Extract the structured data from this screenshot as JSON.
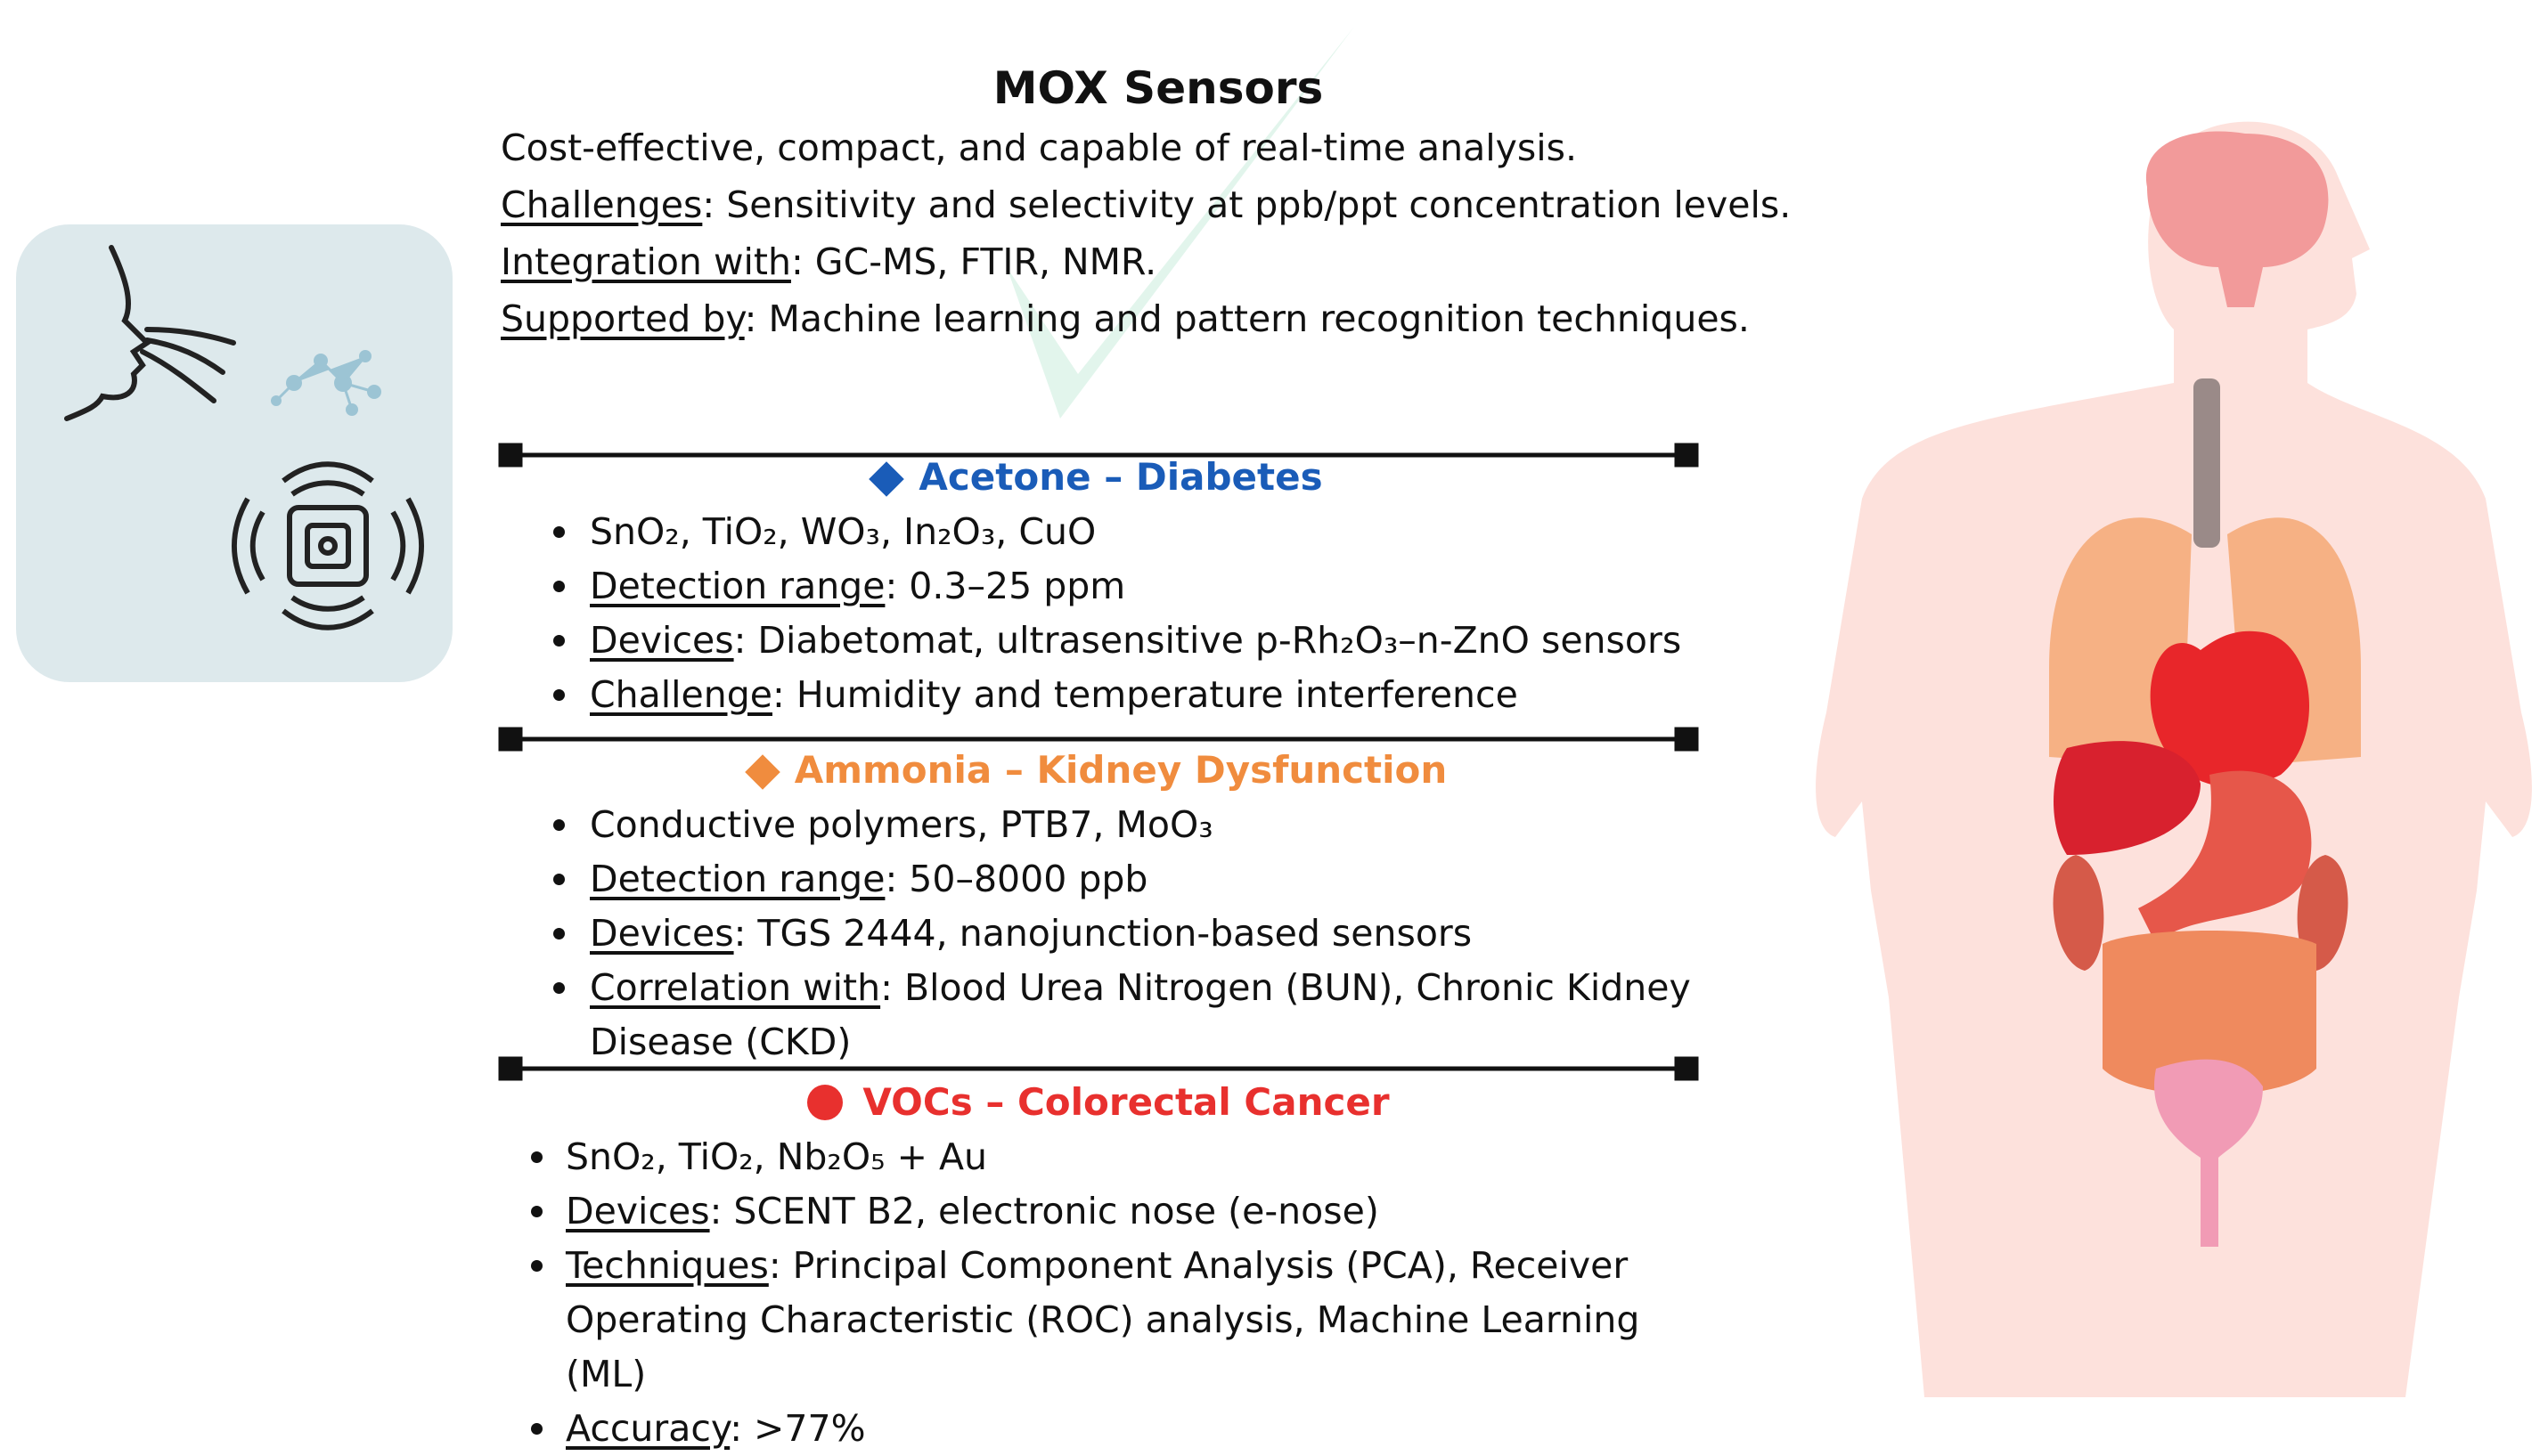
{
  "title": "MOX Sensors",
  "intro": [
    {
      "text": "Cost-effective, compact, and capable of real-time analysis."
    },
    {
      "label": "Challenges",
      "text": ": Sensitivity and selectivity at ppb/ppt concentration levels."
    },
    {
      "label": "Integration with",
      "text": ": GC-MS, FTIR, NMR."
    },
    {
      "label": "Supported by",
      "text": ": Machine learning and pattern recognition techniques."
    }
  ],
  "sections": [
    {
      "title": "Acetone – Diabetes",
      "color": "#1a5cb8",
      "marker": "diamond",
      "items": [
        {
          "text": "SnO₂, TiO₂, WO₃, In₂O₃, CuO"
        },
        {
          "label": "Detection range",
          "text": ": 0.3–25 ppm"
        },
        {
          "label": "Devices",
          "text": ": Diabetomat, ultrasensitive p-Rh₂O₃–n-ZnO sensors"
        },
        {
          "label": "Challenge",
          "text": ": Humidity and temperature interference"
        }
      ]
    },
    {
      "title": "Ammonia – Kidney Dysfunction",
      "color": "#f08c3e",
      "marker": "diamond",
      "items": [
        {
          "text": "Conductive polymers, PTB7, MoO₃"
        },
        {
          "label": "Detection range",
          "text": ": 50–8000 ppb"
        },
        {
          "label": "Devices",
          "text": ": TGS 2444, nanojunction-based sensors"
        },
        {
          "label": "Correlation with",
          "text": ": Blood Urea Nitrogen (BUN), Chronic Kidney Disease (CKD)"
        }
      ]
    },
    {
      "title": "VOCs – Colorectal Cancer",
      "color": "#e8302e",
      "marker": "circle",
      "items": [
        {
          "text": "SnO₂, TiO₂, Nb₂O₅ + Au"
        },
        {
          "label": "Devices",
          "text": ": SCENT B2, electronic nose (e-nose)"
        },
        {
          "label": "Techniques",
          "text": ": Principal Component Analysis (PCA), Receiver Operating Characteristic (ROC) analysis, Machine Learning (ML)"
        },
        {
          "label": "Accuracy",
          "text": ": >77%"
        }
      ]
    }
  ]
}
